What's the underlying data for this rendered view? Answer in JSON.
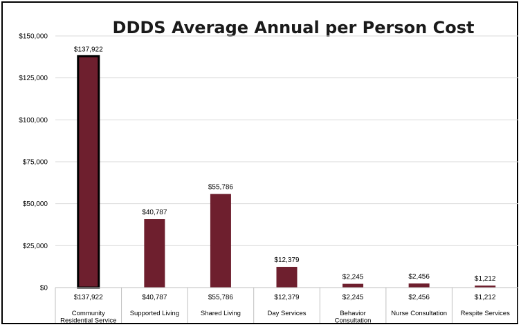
{
  "chart_data": {
    "type": "bar",
    "title": "DDDS Average Annual per Person Cost",
    "categories": [
      [
        "Community",
        "Residential Service"
      ],
      [
        "Supported Living"
      ],
      [
        "Shared Living"
      ],
      [
        "Day Services"
      ],
      [
        "Behavior",
        "Consultation"
      ],
      [
        "Nurse Consultation"
      ],
      [
        "Respite Services"
      ]
    ],
    "values": [
      137922,
      40787,
      55786,
      12379,
      2245,
      2456,
      1212
    ],
    "value_labels": [
      "$137,922",
      "$40,787",
      "$55,786",
      "$12,379",
      "$2,245",
      "$2,456",
      "$1,212"
    ],
    "ylim": [
      0,
      150000
    ],
    "yticks": [
      0,
      25000,
      50000,
      75000,
      100000,
      125000,
      150000
    ],
    "ytick_labels": [
      "$0",
      "$25,000",
      "$50,000",
      "$75,000",
      "$100,000",
      "$125,000",
      "$150,000"
    ],
    "highlighted_index": 0,
    "grid": true,
    "data_table": true,
    "colors": {
      "bar": "#6e1f2e",
      "highlight_border": "#000000",
      "grid": "#d9d9d9",
      "table_border": "#bfbfbf"
    }
  }
}
